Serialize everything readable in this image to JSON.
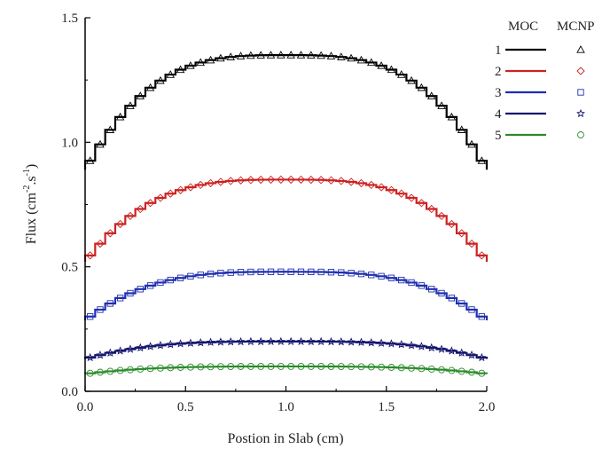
{
  "chart_data": {
    "type": "line",
    "xlabel": "Postion in Slab (cm)",
    "ylabel_main": "Flux (cm",
    "ylabel_sup1": "-2",
    "ylabel_mid": ".s",
    "ylabel_sup2": "-1",
    "ylabel_end": ")",
    "xlim": [
      0.0,
      2.0
    ],
    "ylim": [
      0.0,
      1.5
    ],
    "xticks": [
      "0.0",
      "0.5",
      "1.0",
      "1.5",
      "2.0"
    ],
    "yticks": [
      "0.0",
      "0.5",
      "1.0",
      "1.5"
    ],
    "xtick_values": [
      0.0,
      0.5,
      1.0,
      1.5,
      2.0
    ],
    "ytick_values": [
      0.0,
      0.5,
      1.0,
      1.5
    ],
    "grid": false,
    "legend_position": "top-right",
    "legend_headers": {
      "moc": "MOC",
      "mcnp": "MCNP"
    },
    "series": [
      {
        "name": "1",
        "color": "#000000",
        "marker": "triangle",
        "edge": 0.89,
        "center": 1.35
      },
      {
        "name": "2",
        "color": "#cc2222",
        "marker": "diamond",
        "edge": 0.52,
        "center": 0.85
      },
      {
        "name": "3",
        "color": "#1f2fb0",
        "marker": "square",
        "edge": 0.285,
        "center": 0.48
      },
      {
        "name": "4",
        "color": "#14146e",
        "marker": "star",
        "edge": 0.13,
        "center": 0.2
      },
      {
        "name": "5",
        "color": "#2a8a2a",
        "marker": "circle",
        "edge": 0.07,
        "center": 0.1
      }
    ],
    "step_count": 40
  }
}
